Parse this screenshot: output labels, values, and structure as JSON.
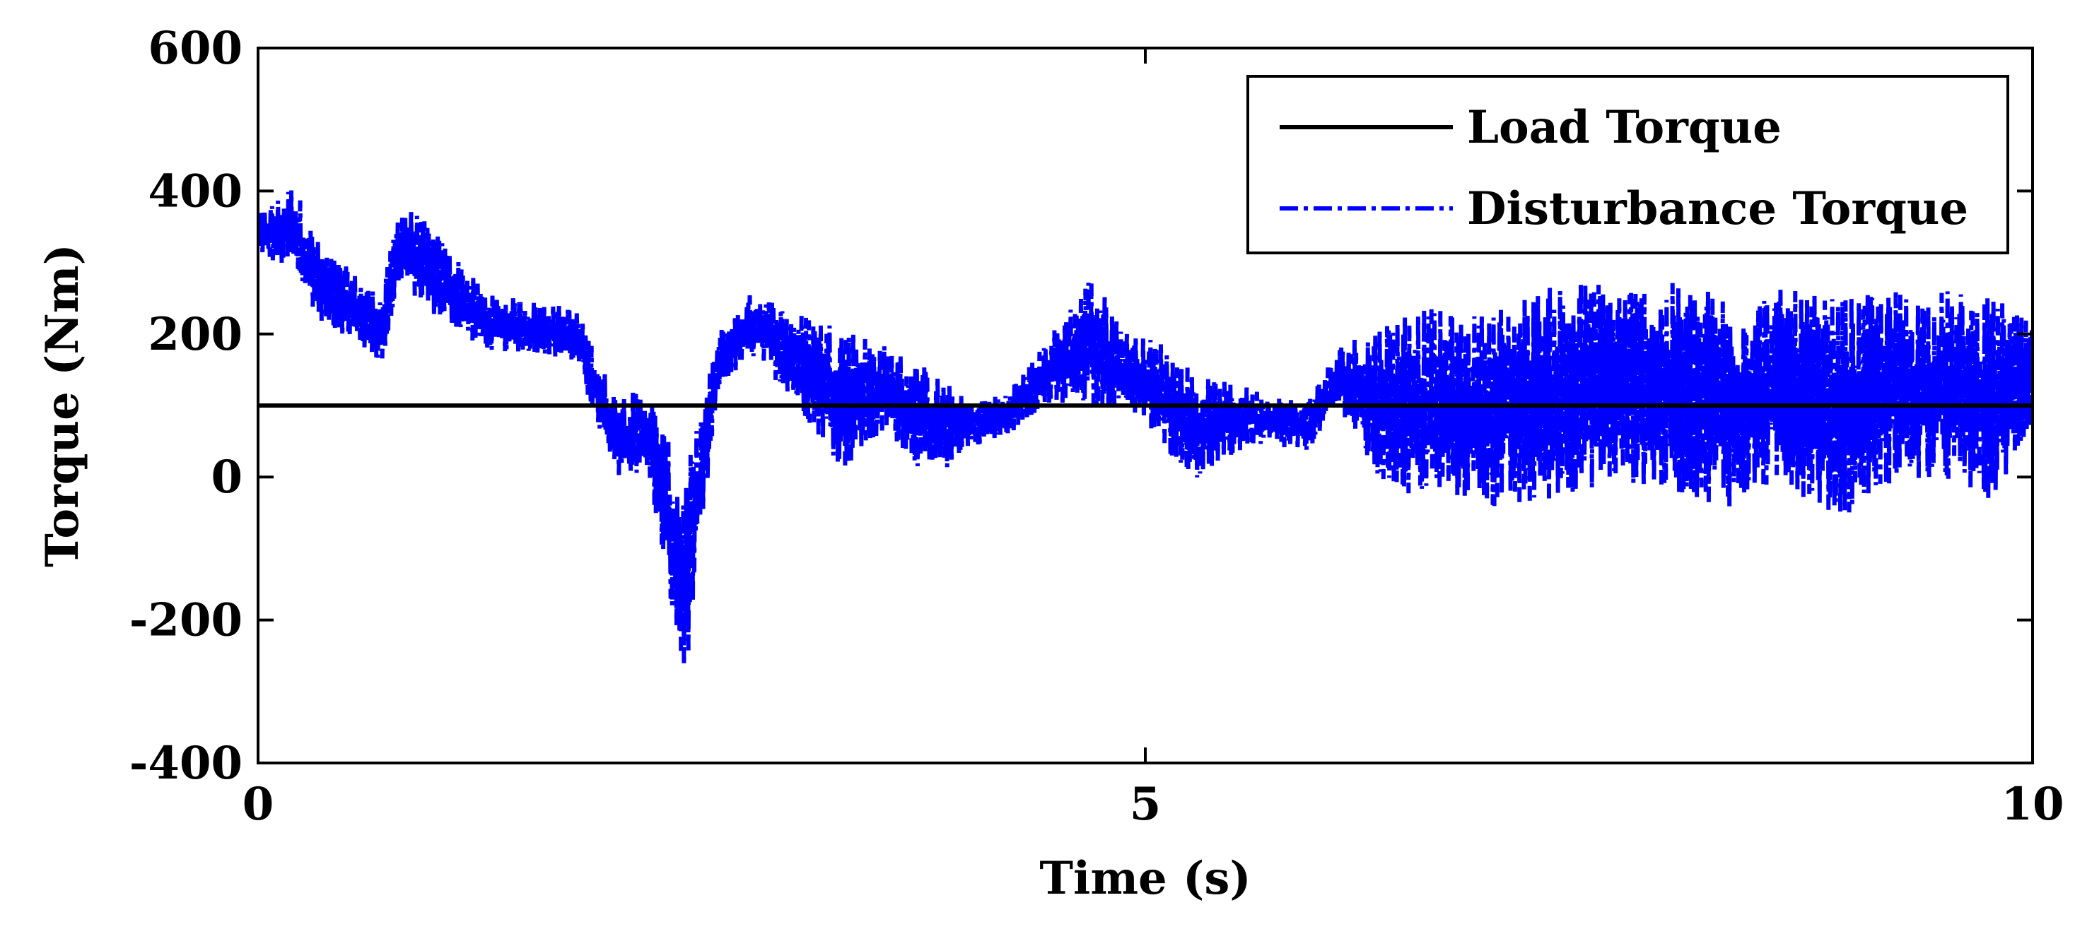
{
  "chart_data": {
    "type": "line",
    "title": "",
    "xlabel": "Time (s)",
    "ylabel": "Torque (Nm)",
    "xlim": [
      0,
      10
    ],
    "ylim": [
      -400,
      600
    ],
    "x_ticks": [
      0,
      5,
      10
    ],
    "x_tick_labels": [
      "0",
      "5",
      "10"
    ],
    "y_ticks": [
      -400,
      -200,
      0,
      200,
      400,
      600
    ],
    "y_tick_labels": [
      "-400",
      "-200",
      "0",
      "200",
      "400",
      "600"
    ],
    "grid": false,
    "legend_position": "top-right",
    "series": [
      {
        "name": "Load Torque",
        "color": "#000000",
        "line_style": "solid",
        "x": [
          0,
          10
        ],
        "y": [
          100,
          100
        ]
      },
      {
        "name": "Disturbance Torque",
        "color": "#0000ff",
        "line_style": "dash-dot",
        "envelope": {
          "x": [
            0.0,
            0.2,
            0.35,
            0.7,
            0.8,
            1.0,
            1.3,
            1.6,
            1.8,
            2.0,
            2.2,
            2.4,
            2.6,
            2.8,
            3.0,
            3.3,
            3.55,
            3.8,
            4.0,
            4.2,
            4.4,
            4.7,
            4.9,
            5.1,
            5.3,
            5.6,
            5.9,
            6.1,
            6.3,
            6.5,
            6.8,
            7.1,
            7.4,
            7.7,
            8.0,
            8.3,
            8.6,
            8.9,
            9.2,
            9.5,
            9.8,
            10.0
          ],
          "upper": [
            370,
            420,
            330,
            260,
            400,
            350,
            260,
            250,
            240,
            130,
            130,
            10,
            210,
            270,
            240,
            230,
            190,
            160,
            110,
            120,
            180,
            300,
            210,
            200,
            150,
            130,
            110,
            190,
            230,
            260,
            240,
            270,
            300,
            290,
            290,
            280,
            280,
            270,
            280,
            280,
            270,
            220
          ],
          "lower": [
            300,
            260,
            200,
            140,
            250,
            200,
            160,
            160,
            140,
            -20,
            -20,
            -350,
            110,
            150,
            90,
            -30,
            40,
            -40,
            30,
            40,
            80,
            60,
            80,
            10,
            -30,
            30,
            20,
            80,
            -50,
            -80,
            -80,
            -110,
            -80,
            -60,
            -80,
            -100,
            -60,
            -120,
            -60,
            -60,
            -90,
            50
          ]
        }
      }
    ]
  }
}
